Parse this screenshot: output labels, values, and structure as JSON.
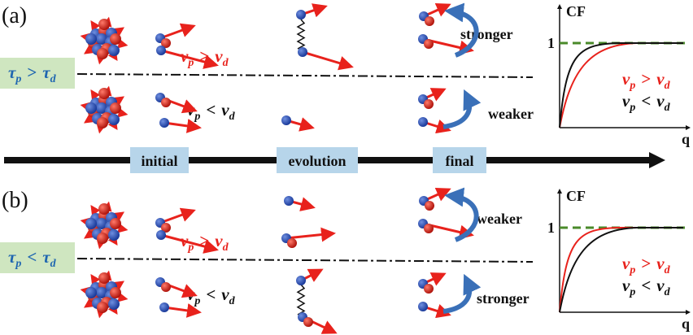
{
  "panels": [
    {
      "label": "(a)",
      "condition": {
        "l": "τ",
        "ls": "p",
        "op": ">",
        "r": "τ",
        "rs": "d"
      },
      "upper": {
        "relation": {
          "l": "v",
          "ls": "p",
          "op": ">",
          "r": "v",
          "rs": "d"
        },
        "effect": "stronger"
      },
      "lower": {
        "relation": {
          "l": "v",
          "ls": "p",
          "op": "<",
          "r": "v",
          "rs": "d"
        },
        "effect": "weaker"
      },
      "plot": {
        "y_label": "CF",
        "y_tick": "1",
        "x_label": "q",
        "legend": [
          {
            "l": "v",
            "ls": "p",
            "op": ">",
            "r": "v",
            "rs": "d"
          },
          {
            "l": "v",
            "ls": "p",
            "op": "<",
            "r": "v",
            "rs": "d"
          }
        ]
      }
    },
    {
      "label": "(b)",
      "condition": {
        "l": "τ",
        "ls": "p",
        "op": "<",
        "r": "τ",
        "rs": "d"
      },
      "upper": {
        "relation": {
          "l": "v",
          "ls": "p",
          "op": ">",
          "r": "v",
          "rs": "d"
        },
        "effect": "weaker"
      },
      "lower": {
        "relation": {
          "l": "v",
          "ls": "p",
          "op": "<",
          "r": "v",
          "rs": "d"
        },
        "effect": "stronger"
      },
      "plot": {
        "y_label": "CF",
        "y_tick": "1",
        "x_label": "q",
        "legend": [
          {
            "l": "v",
            "ls": "p",
            "op": ">",
            "r": "v",
            "rs": "d"
          },
          {
            "l": "v",
            "ls": "p",
            "op": "<",
            "r": "v",
            "rs": "d"
          }
        ]
      }
    }
  ],
  "timeline": {
    "stages": [
      "initial",
      "evolution",
      "final"
    ]
  }
}
